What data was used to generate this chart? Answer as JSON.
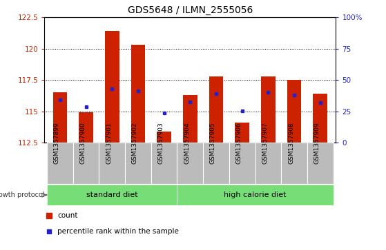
{
  "title": "GDS5648 / ILMN_2555056",
  "samples": [
    "GSM1357899",
    "GSM1357900",
    "GSM1357901",
    "GSM1357902",
    "GSM1357903",
    "GSM1357904",
    "GSM1357905",
    "GSM1357906",
    "GSM1357907",
    "GSM1357908",
    "GSM1357909"
  ],
  "bar_tops": [
    116.5,
    114.9,
    121.4,
    120.3,
    113.4,
    116.3,
    117.8,
    114.1,
    117.8,
    117.5,
    116.4
  ],
  "bar_base": 112.5,
  "percentile_values": [
    115.9,
    115.35,
    116.8,
    116.6,
    114.85,
    115.75,
    116.4,
    115.05,
    116.5,
    116.3,
    115.7
  ],
  "ylim": [
    112.5,
    122.5
  ],
  "yticks_left": [
    112.5,
    115.0,
    117.5,
    120.0,
    122.5
  ],
  "yticks_right": [
    0,
    25,
    50,
    75,
    100
  ],
  "bar_color": "#cc2200",
  "percentile_color": "#2222cc",
  "grid_color": "#000000",
  "standard_diet_count": 5,
  "group_labels": [
    "standard diet",
    "high calorie diet"
  ],
  "group_color": "#77dd77",
  "legend_items": [
    "count",
    "percentile rank within the sample"
  ],
  "label_text": "growth protocol",
  "tick_bg_color": "#bbbbbb",
  "plot_bg_color": "#ffffff"
}
